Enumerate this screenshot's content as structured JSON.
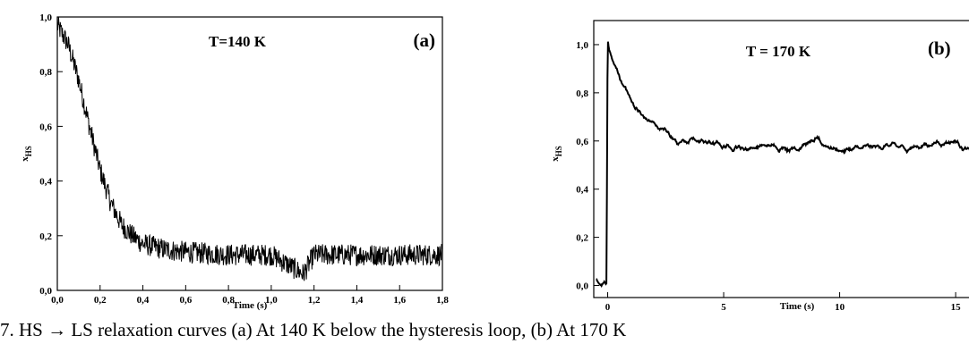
{
  "chart_data": [
    {
      "type": "line",
      "panel_label": "(a)",
      "annotation": "T=140 K",
      "xlabel": "Time (s)",
      "ylabel_main": "x",
      "ylabel_sub": "HS",
      "xlim": [
        0.0,
        1.8
      ],
      "ylim": [
        0.0,
        1.0
      ],
      "xticks": [
        "0,0",
        "0,2",
        "0,4",
        "0,6",
        "0,8",
        "1,0",
        "1,2",
        "1,4",
        "1,6",
        "1,8"
      ],
      "yticks": [
        "0,0",
        "0,2",
        "0,4",
        "0,6",
        "0,8",
        "1,0"
      ],
      "series": [
        {
          "x": [
            0.0,
            0.05,
            0.1,
            0.15,
            0.2,
            0.25,
            0.3,
            0.35,
            0.4,
            0.5,
            0.6,
            0.8,
            1.0,
            1.15,
            1.2,
            1.4,
            1.6,
            1.8
          ],
          "y": [
            0.97,
            0.9,
            0.77,
            0.6,
            0.44,
            0.32,
            0.24,
            0.2,
            0.17,
            0.15,
            0.14,
            0.13,
            0.13,
            0.06,
            0.13,
            0.13,
            0.13,
            0.13
          ],
          "noise_amplitude": 0.04
        }
      ],
      "grid": false
    },
    {
      "type": "line",
      "panel_label": "(b)",
      "annotation": "T = 170 K",
      "xlabel": "Time (s)",
      "ylabel_main": "x",
      "ylabel_sub": "HS",
      "xlim": [
        -0.6,
        16.0
      ],
      "ylim": [
        -0.05,
        1.1
      ],
      "xticks": [
        "0",
        "5",
        "10",
        "15"
      ],
      "xtick_values": [
        0,
        5,
        10,
        15
      ],
      "yticks": [
        "0,0",
        "0,2",
        "0,4",
        "0,6",
        "0,8",
        "1,0"
      ],
      "series": [
        {
          "x": [
            -0.5,
            -0.2,
            -0.05,
            0.0,
            0.05,
            0.3,
            0.6,
            1.0,
            1.5,
            2.0,
            2.5,
            3.0,
            4.0,
            5.0,
            6.0,
            7.0,
            8.0,
            9.0,
            10.0,
            11.0,
            12.0,
            13.0,
            14.0,
            15.0,
            15.9
          ],
          "y": [
            0.0,
            0.01,
            0.0,
            1.01,
            0.98,
            0.91,
            0.85,
            0.77,
            0.7,
            0.67,
            0.64,
            0.6,
            0.6,
            0.58,
            0.57,
            0.58,
            0.57,
            0.6,
            0.56,
            0.57,
            0.58,
            0.57,
            0.59,
            0.6,
            0.53
          ],
          "noise_amplitude": 0.02
        }
      ],
      "grid": false
    }
  ],
  "caption": "7. HS → LS relaxation curves (a) At 140 K below the hysteresis loop, (b) At 170 K"
}
